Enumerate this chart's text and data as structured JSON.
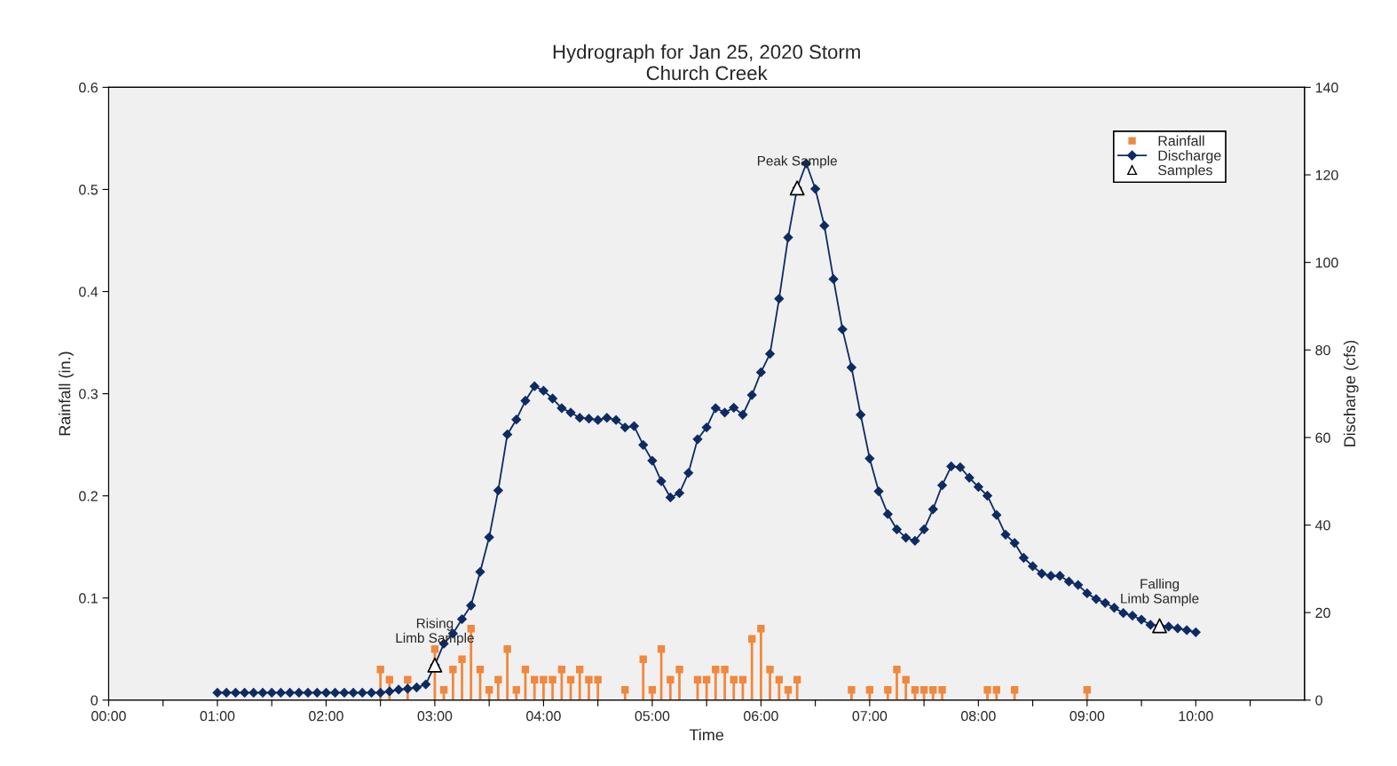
{
  "chart_data": {
    "type": "line",
    "title": "Hydrograph for Jan 25, 2020 Storm",
    "subtitle": "Church Creek",
    "xlabel": "Time",
    "ylabel": "Rainfall (in.)",
    "y2label": "Discharge (cfs)",
    "xlim": [
      0,
      11
    ],
    "xticks": [
      {
        "value": 0,
        "label": "00:00"
      },
      {
        "value": 0.5,
        "label": null
      },
      {
        "value": 1,
        "label": "01:00"
      },
      {
        "value": 1.5,
        "label": null
      },
      {
        "value": 2,
        "label": "02:00"
      },
      {
        "value": 2.5,
        "label": null
      },
      {
        "value": 3,
        "label": "03:00"
      },
      {
        "value": 3.5,
        "label": null
      },
      {
        "value": 4,
        "label": "04:00"
      },
      {
        "value": 4.5,
        "label": null
      },
      {
        "value": 5,
        "label": "05:00"
      },
      {
        "value": 5.5,
        "label": null
      },
      {
        "value": 6,
        "label": "06:00"
      },
      {
        "value": 6.5,
        "label": null
      },
      {
        "value": 7,
        "label": "07:00"
      },
      {
        "value": 7.5,
        "label": null
      },
      {
        "value": 8,
        "label": "08:00"
      },
      {
        "value": 8.5,
        "label": null
      },
      {
        "value": 9,
        "label": "09:00"
      },
      {
        "value": 9.5,
        "label": null
      },
      {
        "value": 10,
        "label": "10:00"
      },
      {
        "value": 10.5,
        "label": null
      }
    ],
    "ylim": [
      0,
      0.6
    ],
    "yticks": [
      0,
      0.1,
      0.2,
      0.3,
      0.4,
      0.5,
      0.6
    ],
    "y2lim": [
      0,
      140
    ],
    "y2ticks": [
      0,
      20,
      40,
      60,
      80,
      100,
      120,
      140
    ],
    "grid": false,
    "legend": "top right",
    "series": [
      {
        "name": "Rainfall",
        "type": "lollipop",
        "color": "#f0883e",
        "marker": "square",
        "x": [
          2.5,
          2.583,
          2.75,
          3,
          3.083,
          3.167,
          3.25,
          3.333,
          3.417,
          3.5,
          3.583,
          3.667,
          3.75,
          3.833,
          3.917,
          4,
          4.083,
          4.167,
          4.25,
          4.333,
          4.417,
          4.5,
          4.75,
          4.917,
          5,
          5.083,
          5.167,
          5.25,
          5.417,
          5.5,
          5.583,
          5.667,
          5.75,
          5.833,
          5.917,
          6,
          6.083,
          6.167,
          6.25,
          6.333,
          6.833,
          7,
          7.167,
          7.25,
          7.333,
          7.417,
          7.5,
          7.583,
          7.667,
          8.083,
          8.167,
          8.333,
          9
        ],
        "values": [
          0.03,
          0.02,
          0.02,
          0.05,
          0.01,
          0.03,
          0.04,
          0.07,
          0.03,
          0.01,
          0.02,
          0.05,
          0.01,
          0.03,
          0.02,
          0.02,
          0.02,
          0.03,
          0.02,
          0.03,
          0.02,
          0.02,
          0.01,
          0.04,
          0.01,
          0.05,
          0.02,
          0.03,
          0.02,
          0.02,
          0.03,
          0.03,
          0.02,
          0.02,
          0.06,
          0.07,
          0.03,
          0.02,
          0.01,
          0.02,
          0.01,
          0.01,
          0.01,
          0.03,
          0.02,
          0.01,
          0.01,
          0.01,
          0.01,
          0.01,
          0.01,
          0.01,
          0.01
        ]
      },
      {
        "name": "Discharge",
        "axis": "y2",
        "color": "#0d2b63",
        "marker": "diamond",
        "line_style": "solid",
        "x": [
          1,
          1.083,
          1.167,
          1.25,
          1.333,
          1.417,
          1.5,
          1.583,
          1.667,
          1.75,
          1.833,
          1.917,
          2,
          2.083,
          2.167,
          2.25,
          2.333,
          2.417,
          2.5,
          2.583,
          2.667,
          2.75,
          2.833,
          2.917,
          3,
          3.083,
          3.167,
          3.25,
          3.333,
          3.417,
          3.5,
          3.583,
          3.667,
          3.75,
          3.833,
          3.917,
          4,
          4.083,
          4.167,
          4.25,
          4.333,
          4.417,
          4.5,
          4.583,
          4.667,
          4.75,
          4.833,
          4.917,
          5,
          5.083,
          5.167,
          5.25,
          5.333,
          5.417,
          5.5,
          5.583,
          5.667,
          5.75,
          5.833,
          5.917,
          6,
          6.083,
          6.167,
          6.25,
          6.333,
          6.417,
          6.5,
          6.583,
          6.667,
          6.75,
          6.833,
          6.917,
          7,
          7.083,
          7.167,
          7.25,
          7.333,
          7.417,
          7.5,
          7.583,
          7.667,
          7.75,
          7.833,
          7.917,
          8,
          8.083,
          8.167,
          8.25,
          8.333,
          8.417,
          8.5,
          8.583,
          8.667,
          8.75,
          8.833,
          8.917,
          9,
          9.083,
          9.167,
          9.25,
          9.333,
          9.417,
          9.5,
          9.583,
          9.667,
          9.75,
          9.833,
          9.917,
          10
        ],
        "values": [
          1.7,
          1.7,
          1.7,
          1.7,
          1.7,
          1.7,
          1.7,
          1.7,
          1.7,
          1.7,
          1.7,
          1.7,
          1.7,
          1.7,
          1.7,
          1.7,
          1.7,
          1.7,
          1.7,
          2.0,
          2.4,
          2.6,
          2.9,
          3.6,
          8.0,
          12.9,
          15.2,
          18.5,
          21.6,
          29.3,
          37.2,
          47.9,
          60.7,
          64.1,
          68.4,
          71.7,
          70.7,
          68.9,
          66.7,
          65.7,
          64.5,
          64.3,
          64.0,
          64.5,
          64.0,
          62.3,
          62.6,
          58.3,
          54.7,
          50.0,
          46.3,
          47.3,
          51.9,
          59.6,
          62.3,
          66.7,
          65.7,
          66.8,
          65.2,
          69.7,
          74.9,
          79.1,
          91.7,
          105.7,
          117,
          122.6,
          116.8,
          108.4,
          96.2,
          84.7,
          76.0,
          65.2,
          55.2,
          47.7,
          42.5,
          39.0,
          37.1,
          36.4,
          39.0,
          43.6,
          49.1,
          53.4,
          53.2,
          50.8,
          48.7,
          46.7,
          42.3,
          37.8,
          35.9,
          32.5,
          30.6,
          28.9,
          28.4,
          28.4,
          27.1,
          26.3,
          24.4,
          23.1,
          22.2,
          21.1,
          19.9,
          19.3,
          18.4,
          17.2,
          17.0,
          16.8,
          16.4,
          16.0,
          15.5
        ]
      },
      {
        "name": "Samples",
        "type": "scatter",
        "axis": "y2",
        "color": "#000000",
        "marker": "triangle",
        "x": [
          3,
          6.333,
          9.667
        ],
        "values": [
          8.0,
          117,
          17.0
        ]
      }
    ],
    "annotations": [
      "Rising\nLimb Sample",
      "Peak Sample",
      "Falling\nLimb Sample"
    ]
  }
}
